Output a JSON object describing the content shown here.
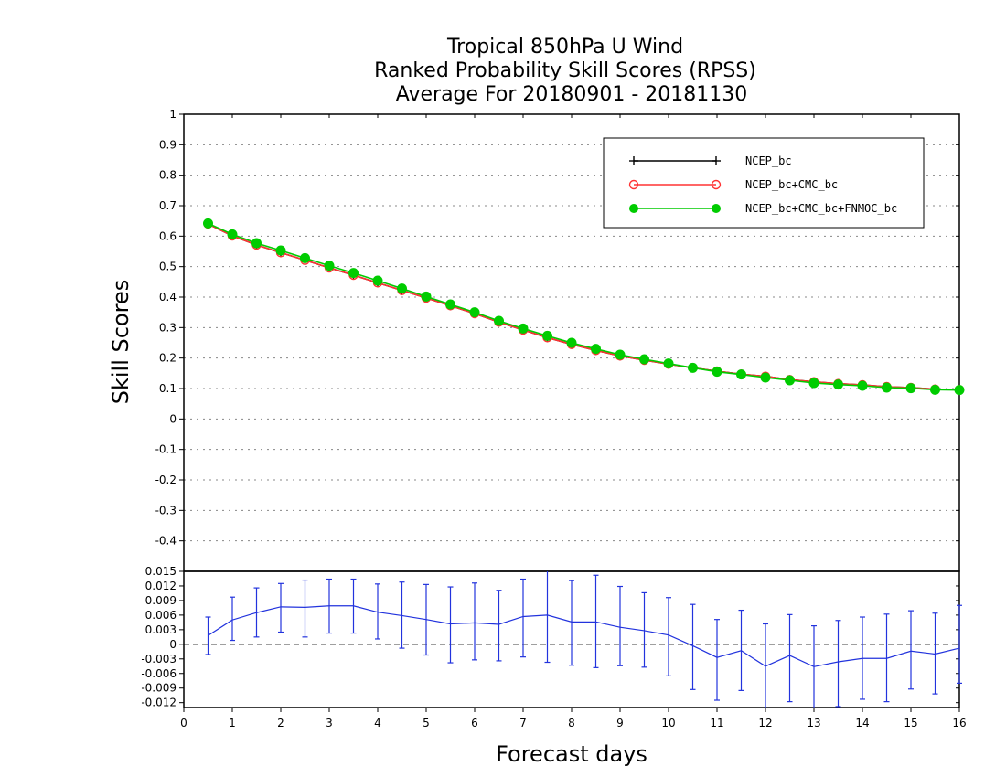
{
  "chart_data": [
    {
      "type": "line",
      "title": [
        "Tropical 850hPa U Wind",
        "Ranked Probability Skill Scores (RPSS)",
        "Average For 20180901 - 20181130"
      ],
      "xlabel": "Forecast days",
      "ylabel": "Skill Scores",
      "xlim": [
        0,
        16
      ],
      "ylim": [
        -0.5,
        1
      ],
      "xticks": [
        "0",
        "1",
        "2",
        "3",
        "4",
        "5",
        "6",
        "7",
        "8",
        "9",
        "10",
        "11",
        "12",
        "13",
        "14",
        "15",
        "16"
      ],
      "yticks": [
        "1",
        "0.9",
        "0.8",
        "0.7",
        "0.6",
        "0.5",
        "0.4",
        "0.3",
        "0.2",
        "0.1",
        "0",
        "-0.1",
        "-0.2",
        "-0.3",
        "-0.4"
      ],
      "grid": true,
      "legend_position": "top-right",
      "x": [
        0.5,
        1,
        1.5,
        2,
        2.5,
        3,
        3.5,
        4,
        4.5,
        5,
        5.5,
        6,
        6.5,
        7,
        7.5,
        8,
        8.5,
        9,
        9.5,
        10,
        10.5,
        11,
        11.5,
        12,
        12.5,
        13,
        13.5,
        14,
        14.5,
        15,
        15.5,
        16
      ],
      "series": [
        {
          "name": "NCEP_bc",
          "color": "#000000",
          "marker": "plus",
          "values": [
            0.64,
            0.601,
            0.571,
            0.546,
            0.521,
            0.496,
            0.472,
            0.447,
            0.422,
            0.397,
            0.372,
            0.346,
            0.318,
            0.292,
            0.267,
            0.245,
            0.225,
            0.207,
            0.193,
            0.18,
            0.168,
            0.157,
            0.147,
            0.14,
            0.129,
            0.122,
            0.116,
            0.112,
            0.106,
            0.103,
            0.098,
            0.096
          ]
        },
        {
          "name": "NCEP_bc+CMC_bc",
          "color": "#ff3333",
          "marker": "open-circle",
          "values": [
            0.64,
            0.601,
            0.571,
            0.546,
            0.521,
            0.496,
            0.472,
            0.447,
            0.422,
            0.397,
            0.372,
            0.346,
            0.318,
            0.292,
            0.267,
            0.245,
            0.225,
            0.207,
            0.193,
            0.18,
            0.168,
            0.157,
            0.147,
            0.14,
            0.129,
            0.122,
            0.116,
            0.112,
            0.106,
            0.103,
            0.098,
            0.096
          ]
        },
        {
          "name": "NCEP_bc+CMC_bc+FNMOC_bc",
          "color": "#00cc00",
          "marker": "filled-circle",
          "values": [
            0.642,
            0.606,
            0.577,
            0.553,
            0.528,
            0.503,
            0.479,
            0.454,
            0.428,
            0.402,
            0.376,
            0.35,
            0.322,
            0.297,
            0.273,
            0.25,
            0.23,
            0.211,
            0.196,
            0.182,
            0.168,
            0.155,
            0.146,
            0.136,
            0.127,
            0.118,
            0.113,
            0.109,
            0.103,
            0.101,
            0.096,
            0.095
          ]
        }
      ]
    },
    {
      "type": "line",
      "xlim": [
        0,
        16
      ],
      "ylim": [
        -0.013,
        0.015
      ],
      "yticks": [
        "0.015",
        "0.012",
        "0.009",
        "0.006",
        "0.003",
        "0",
        "-0.003",
        "-0.006",
        "-0.009",
        "-0.012"
      ],
      "zero_line": "dashed",
      "series": [
        {
          "color": "#2233dd",
          "x": [
            0.5,
            1,
            1.5,
            2,
            2.5,
            3,
            3.5,
            4,
            4.5,
            5,
            5.5,
            6,
            6.5,
            7,
            7.5,
            8,
            8.5,
            9,
            9.5,
            10,
            10.5,
            11,
            11.5,
            12,
            12.5,
            13,
            13.5,
            14,
            14.5,
            15,
            15.5,
            16
          ],
          "values": [
            0.0018,
            0.005,
            0.0065,
            0.0077,
            0.0076,
            0.0079,
            0.0079,
            0.0066,
            0.0059,
            0.0051,
            0.0042,
            0.0044,
            0.0041,
            0.0057,
            0.006,
            0.0046,
            0.0046,
            0.0035,
            0.0028,
            0.0019,
            -0.0003,
            -0.0027,
            -0.0013,
            -0.0045,
            -0.0023,
            -0.0046,
            -0.0036,
            -0.0029,
            -0.0029,
            -0.0014,
            -0.002,
            -0.0008
          ],
          "error_low": [
            -0.0021,
            0.0008,
            0.0015,
            0.0025,
            0.0015,
            0.0023,
            0.0023,
            0.0011,
            -0.0008,
            -0.0022,
            -0.0038,
            -0.0032,
            -0.0034,
            -0.0026,
            -0.0037,
            -0.0043,
            -0.0048,
            -0.0044,
            -0.0047,
            -0.0065,
            -0.0093,
            -0.0115,
            -0.0095,
            -0.0135,
            -0.0118,
            -0.0131,
            -0.0128,
            -0.0113,
            -0.0118,
            -0.0092,
            -0.0102,
            -0.008
          ],
          "error_high": [
            0.0056,
            0.0097,
            0.0116,
            0.0125,
            0.0132,
            0.0134,
            0.0134,
            0.0124,
            0.0128,
            0.0123,
            0.0118,
            0.0126,
            0.0111,
            0.0134,
            0.0151,
            0.0131,
            0.0142,
            0.0119,
            0.0106,
            0.0096,
            0.0082,
            0.0051,
            0.007,
            0.0042,
            0.0061,
            0.0038,
            0.0049,
            0.0056,
            0.0062,
            0.0069,
            0.0064,
            0.008
          ]
        }
      ]
    }
  ]
}
